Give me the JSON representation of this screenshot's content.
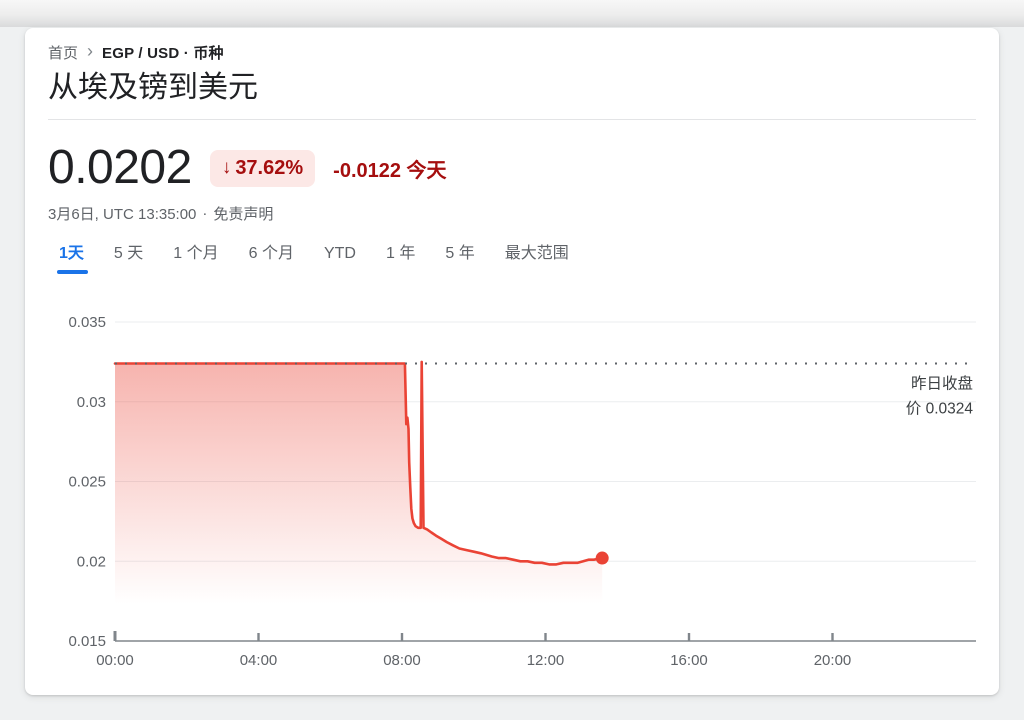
{
  "breadcrumb": {
    "home": "首页",
    "chevron": "›",
    "current": "EGP / USD · 币种"
  },
  "page_title": "从埃及镑到美元",
  "quote": {
    "price": "0.0202",
    "change_arrow": "↓",
    "change_percent": "37.62%",
    "change_value_and_period": "-0.0122 今天",
    "timestamp": "3月6日, UTC 13:35:00",
    "separator": "·",
    "disclaimer": "免责声明"
  },
  "tabs": {
    "items": [
      {
        "label": "1天",
        "active": true
      },
      {
        "label": "5 天",
        "active": false
      },
      {
        "label": "1 个月",
        "active": false
      },
      {
        "label": "6 个月",
        "active": false
      },
      {
        "label": "YTD",
        "active": false
      },
      {
        "label": "1 年",
        "active": false
      },
      {
        "label": "5 年",
        "active": false
      },
      {
        "label": "最大范围",
        "active": false
      }
    ]
  },
  "chart_data": {
    "type": "area",
    "x_unit": "hours",
    "xlim": [
      0,
      24
    ],
    "ylim": [
      0.015,
      0.035
    ],
    "grid": true,
    "legend": false,
    "x": [
      0,
      2,
      4,
      6,
      8.08,
      8.12,
      8.15,
      8.18,
      8.2,
      8.23,
      8.26,
      8.29,
      8.33,
      8.38,
      8.45,
      8.52,
      8.55,
      8.6,
      8.7,
      8.82,
      8.95,
      9.1,
      9.25,
      9.42,
      9.6,
      9.8,
      10.0,
      10.2,
      10.35,
      10.5,
      10.7,
      10.9,
      11.1,
      11.3,
      11.5,
      11.7,
      11.9,
      12.1,
      12.3,
      12.5,
      12.7,
      12.9,
      13.05,
      13.2,
      13.35,
      13.58
    ],
    "values": [
      0.0324,
      0.0324,
      0.0324,
      0.0324,
      0.0324,
      0.0286,
      0.029,
      0.0283,
      0.0262,
      0.0246,
      0.0233,
      0.0227,
      0.0224,
      0.0222,
      0.0221,
      0.0221,
      0.0325,
      0.0221,
      0.022,
      0.0218,
      0.0216,
      0.0214,
      0.0212,
      0.021,
      0.0208,
      0.0207,
      0.0206,
      0.0205,
      0.0204,
      0.0203,
      0.0202,
      0.0202,
      0.0201,
      0.02,
      0.02,
      0.0199,
      0.0199,
      0.0198,
      0.0198,
      0.0199,
      0.0199,
      0.0199,
      0.02,
      0.0201,
      0.0201,
      0.0202
    ],
    "last_value": 0.0202,
    "previous_close": 0.0324,
    "previous_close_label_lines": [
      "昨日收盘",
      "价 0.0324"
    ],
    "x_ticks": [
      {
        "hour": 0,
        "label": "00:00"
      },
      {
        "hour": 4,
        "label": "04:00"
      },
      {
        "hour": 8,
        "label": "08:00"
      },
      {
        "hour": 12,
        "label": "12:00"
      },
      {
        "hour": 16,
        "label": "16:00"
      },
      {
        "hour": 20,
        "label": "20:00"
      }
    ],
    "y_ticks": [
      {
        "value": 0.035,
        "label": "0.035"
      },
      {
        "value": 0.03,
        "label": "0.03"
      },
      {
        "value": 0.025,
        "label": "0.025"
      },
      {
        "value": 0.02,
        "label": "0.02"
      },
      {
        "value": 0.015,
        "label": "0.015"
      }
    ],
    "line_color": "#ea4335",
    "marker_color": "#ea4335",
    "fill_top_color": "rgba(234,67,53,0.40)",
    "fill_bottom_color": "rgba(234,67,53,0)",
    "previous_close_line_color": "#5f6368",
    "gridline_color": "#ebedef",
    "axis_color": "#80868b",
    "tick_label_color": "#5f6368",
    "annotation_color": "#3c4043"
  },
  "colors": {
    "accent_blue": "#1a73e8",
    "negative_red": "#a50e0e",
    "badge_background": "#fce8e6",
    "line_red": "#ea4335"
  }
}
